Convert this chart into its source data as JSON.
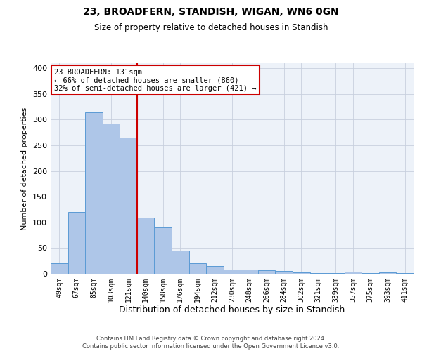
{
  "title1": "23, BROADFERN, STANDISH, WIGAN, WN6 0GN",
  "title2": "Size of property relative to detached houses in Standish",
  "xlabel": "Distribution of detached houses by size in Standish",
  "ylabel": "Number of detached properties",
  "categories": [
    "49sqm",
    "67sqm",
    "85sqm",
    "103sqm",
    "121sqm",
    "140sqm",
    "158sqm",
    "176sqm",
    "194sqm",
    "212sqm",
    "230sqm",
    "248sqm",
    "266sqm",
    "284sqm",
    "302sqm",
    "321sqm",
    "339sqm",
    "357sqm",
    "375sqm",
    "393sqm",
    "411sqm"
  ],
  "values": [
    20,
    120,
    315,
    293,
    265,
    110,
    90,
    45,
    20,
    15,
    8,
    8,
    7,
    5,
    3,
    2,
    2,
    4,
    2,
    3,
    2
  ],
  "bar_color": "#aec6e8",
  "bar_edge_color": "#5b9bd5",
  "vline_color": "#cc0000",
  "annotation_title": "23 BROADFERN: 131sqm",
  "annotation_line1": "← 66% of detached houses are smaller (860)",
  "annotation_line2": "32% of semi-detached houses are larger (421) →",
  "annotation_box_color": "#ffffff",
  "annotation_box_edge_color": "#cc0000",
  "footer1": "Contains HM Land Registry data © Crown copyright and database right 2024.",
  "footer2": "Contains public sector information licensed under the Open Government Licence v3.0.",
  "ylim": [
    0,
    410
  ],
  "yticks": [
    0,
    50,
    100,
    150,
    200,
    250,
    300,
    350,
    400
  ],
  "background_color": "#edf2f9"
}
